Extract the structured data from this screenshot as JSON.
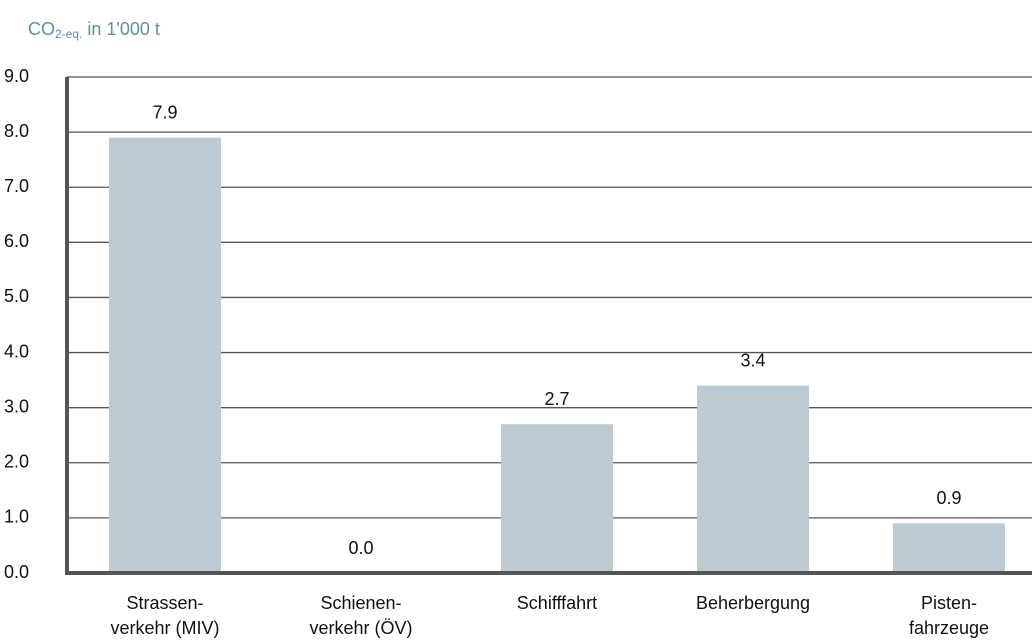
{
  "chart_data": {
    "type": "bar",
    "ylabel": {
      "main": "CO",
      "sub": "2-eq.",
      "rest": " in 1'000 t"
    },
    "categories": [
      [
        "Strassen-",
        "verkehr (MIV)"
      ],
      [
        "Schienen-",
        "verkehr (ÖV)"
      ],
      [
        "Schifffahrt"
      ],
      [
        "Beherbergung"
      ],
      [
        "Pisten-",
        "fahrzeuge"
      ]
    ],
    "values": [
      7.9,
      0.0,
      2.7,
      3.4,
      0.9
    ],
    "value_labels": [
      "7.9",
      "0.0",
      "2.7",
      "3.4",
      "0.9"
    ],
    "color": "#bccbd3",
    "ylim": [
      0,
      9
    ],
    "yticks": [
      {
        "value": 0,
        "label": "0.0"
      },
      {
        "value": 1,
        "label": "1.0"
      },
      {
        "value": 2,
        "label": "2.0"
      },
      {
        "value": 3,
        "label": "3.0"
      },
      {
        "value": 4,
        "label": "4.0"
      },
      {
        "value": 5,
        "label": "5.0"
      },
      {
        "value": 6,
        "label": "6.0"
      },
      {
        "value": 7,
        "label": "7.0"
      },
      {
        "value": 8,
        "label": "8.0"
      },
      {
        "value": 9,
        "label": "9.0"
      }
    ],
    "grid": true
  }
}
